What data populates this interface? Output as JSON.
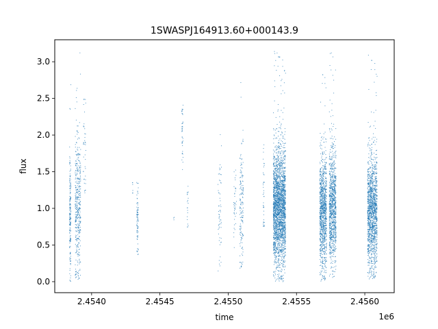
{
  "chart_data": {
    "type": "scatter",
    "title": "1SWASPJ164913.60+000143.9",
    "xlabel": "time",
    "ylabel": "flux",
    "x_offset_label": "1e6",
    "xlim": [
      2453730,
      2456215
    ],
    "ylim": [
      -0.15,
      3.3
    ],
    "x_ticks": [
      2453999.8,
      2454499.8,
      2454999.8,
      2455499.8,
      2455999.8
    ],
    "x_tick_labels": [
      "2.4540",
      "2.4545",
      "2.4550",
      "2.4555",
      "2.4560"
    ],
    "y_ticks": [
      0.0,
      0.5,
      1.0,
      1.5,
      2.0,
      2.5,
      3.0
    ],
    "y_tick_labels": [
      "0.0",
      "0.5",
      "1.0",
      "1.5",
      "2.0",
      "2.5",
      "3.0"
    ],
    "grid": false,
    "marker_color": "#1f77b4",
    "clusters": [
      {
        "x_start": 2453838,
        "x_end": 2453848,
        "n": 180,
        "y_center": 0.95,
        "y_spread": 0.45,
        "y_min": 0.0,
        "y_max": 2.8
      },
      {
        "x_start": 2453880,
        "x_end": 2453920,
        "n": 420,
        "y_center": 1.0,
        "y_spread": 0.5,
        "y_min": 0.03,
        "y_max": 3.2
      },
      {
        "x_start": 2453938,
        "x_end": 2453958,
        "n": 40,
        "y_center": 1.8,
        "y_spread": 0.4,
        "y_min": 1.2,
        "y_max": 2.7
      },
      {
        "x_start": 2454298,
        "x_end": 2454302,
        "n": 6,
        "y_center": 1.28,
        "y_spread": 0.06,
        "y_min": 1.15,
        "y_max": 1.38
      },
      {
        "x_start": 2454330,
        "x_end": 2454342,
        "n": 80,
        "y_center": 0.82,
        "y_spread": 0.25,
        "y_min": 0.35,
        "y_max": 1.5
      },
      {
        "x_start": 2454600,
        "x_end": 2454605,
        "n": 3,
        "y_center": 0.86,
        "y_spread": 0.02,
        "y_min": 0.84,
        "y_max": 0.88
      },
      {
        "x_start": 2454660,
        "x_end": 2454670,
        "n": 40,
        "y_center": 1.95,
        "y_spread": 0.3,
        "y_min": 1.5,
        "y_max": 2.45
      },
      {
        "x_start": 2454700,
        "x_end": 2454708,
        "n": 20,
        "y_center": 1.05,
        "y_spread": 0.2,
        "y_min": 0.7,
        "y_max": 1.4
      },
      {
        "x_start": 2454925,
        "x_end": 2454950,
        "n": 60,
        "y_center": 0.9,
        "y_spread": 0.4,
        "y_min": 0.05,
        "y_max": 2.5
      },
      {
        "x_start": 2455040,
        "x_end": 2455060,
        "n": 40,
        "y_center": 0.95,
        "y_spread": 0.3,
        "y_min": 0.4,
        "y_max": 1.6
      },
      {
        "x_start": 2455085,
        "x_end": 2455110,
        "n": 160,
        "y_center": 0.95,
        "y_spread": 0.45,
        "y_min": 0.17,
        "y_max": 2.85
      },
      {
        "x_start": 2455255,
        "x_end": 2455265,
        "n": 40,
        "y_center": 1.2,
        "y_spread": 0.4,
        "y_min": 0.75,
        "y_max": 1.95
      },
      {
        "x_start": 2455330,
        "x_end": 2455420,
        "n": 2600,
        "y_center": 1.0,
        "y_spread": 0.4,
        "y_min": 0.0,
        "y_max": 3.15
      },
      {
        "x_start": 2455670,
        "x_end": 2455720,
        "n": 1100,
        "y_center": 0.95,
        "y_spread": 0.38,
        "y_min": 0.0,
        "y_max": 2.9
      },
      {
        "x_start": 2455740,
        "x_end": 2455790,
        "n": 1000,
        "y_center": 1.0,
        "y_spread": 0.4,
        "y_min": 0.05,
        "y_max": 3.15
      },
      {
        "x_start": 2456020,
        "x_end": 2456090,
        "n": 1500,
        "y_center": 0.95,
        "y_spread": 0.38,
        "y_min": 0.03,
        "y_max": 3.1
      }
    ]
  }
}
